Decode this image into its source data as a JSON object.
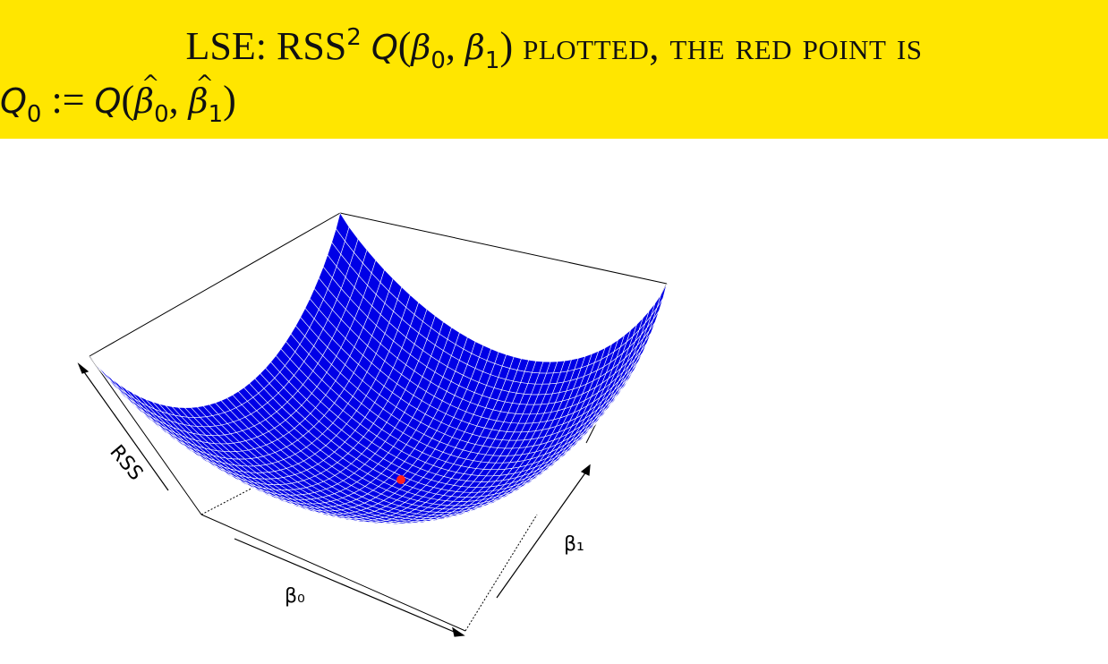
{
  "slide": {
    "title_line1": {
      "lse": "LSE: RSS",
      "sup": "2",
      "q": "Q",
      "open": "(",
      "b0": "β",
      "b0_sub": "0",
      "comma": ", ",
      "b1": "β",
      "b1_sub": "1",
      "close": ")",
      "rest": "plotted, the red point is"
    },
    "title_line2": {
      "q0": "Q",
      "q0_sub": "0",
      "assign": " := ",
      "q": "Q",
      "open": "(",
      "b0": "β",
      "b0_sub": "0",
      "comma": ", ",
      "b1": "β",
      "b1_sub": "1",
      "close": ")"
    }
  },
  "figure": {
    "axis_labels": {
      "z": "RSS",
      "x": "β₀",
      "y": "β₁"
    },
    "surface_color": "#0000e6",
    "mesh_color": "#ffffff",
    "point_color": "#ff2020",
    "highlight_color": "#ffe600"
  }
}
